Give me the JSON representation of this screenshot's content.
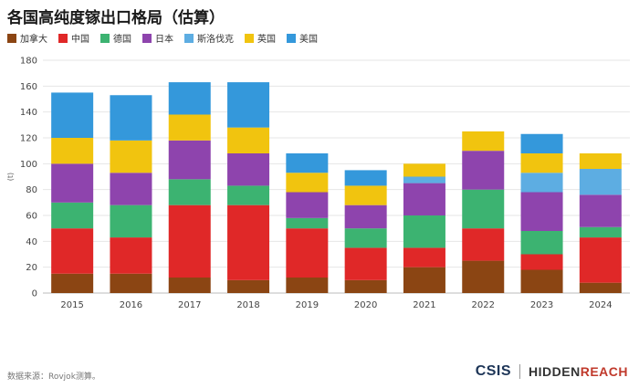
{
  "title": "各国高纯度镓出口格局（估算）",
  "legend": [
    {
      "name": "加拿大",
      "color": "#8b4513"
    },
    {
      "name": "中国",
      "color": "#e02828"
    },
    {
      "name": "德国",
      "color": "#3cb371"
    },
    {
      "name": "日本",
      "color": "#8e44ad"
    },
    {
      "name": "斯洛伐克",
      "color": "#5dade2"
    },
    {
      "name": "英国",
      "color": "#f1c40f"
    },
    {
      "name": "美国",
      "color": "#3498db"
    }
  ],
  "chart_data": {
    "type": "bar",
    "stacked": true,
    "categories": [
      "2015",
      "2016",
      "2017",
      "2018",
      "2019",
      "2020",
      "2021",
      "2022",
      "2023",
      "2024"
    ],
    "series": [
      {
        "name": "加拿大",
        "values": [
          15,
          15,
          12,
          10,
          12,
          10,
          20,
          25,
          18,
          8
        ]
      },
      {
        "name": "中国",
        "values": [
          35,
          28,
          56,
          58,
          38,
          25,
          15,
          25,
          12,
          35
        ]
      },
      {
        "name": "德国",
        "values": [
          20,
          25,
          20,
          15,
          8,
          15,
          25,
          30,
          18,
          8
        ]
      },
      {
        "name": "日本",
        "values": [
          30,
          25,
          30,
          25,
          20,
          18,
          25,
          30,
          30,
          25
        ]
      },
      {
        "name": "斯洛伐克",
        "values": [
          0,
          0,
          0,
          0,
          0,
          0,
          5,
          0,
          15,
          20
        ]
      },
      {
        "name": "英国",
        "values": [
          20,
          25,
          20,
          20,
          15,
          15,
          10,
          15,
          15,
          12
        ]
      },
      {
        "name": "美国",
        "values": [
          35,
          35,
          25,
          35,
          15,
          12,
          0,
          0,
          15,
          0
        ]
      }
    ],
    "ylabel": "(t)",
    "ylim": [
      0,
      180
    ],
    "yticks": [
      0,
      20,
      40,
      60,
      80,
      100,
      120,
      140,
      160,
      180
    ]
  },
  "footer": {
    "source": "数据来源：Rovjok测算。",
    "logo_left": "CSIS",
    "logo_right_a": "HIDDEN",
    "logo_right_b": "REACH"
  }
}
